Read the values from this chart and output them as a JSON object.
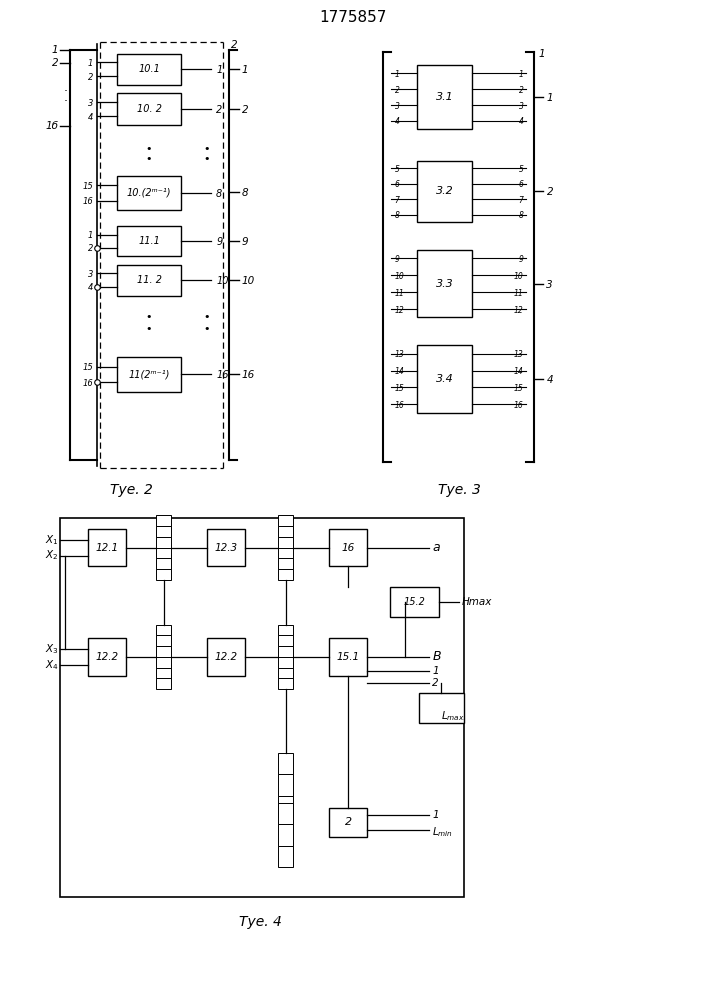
{
  "title": "1775857",
  "bg": "#ffffff",
  "lc": "#000000",
  "fig2_caption": "Τуе. 2",
  "fig3_caption": "Τуе. 3",
  "fig4_caption": "Τуе. 4"
}
